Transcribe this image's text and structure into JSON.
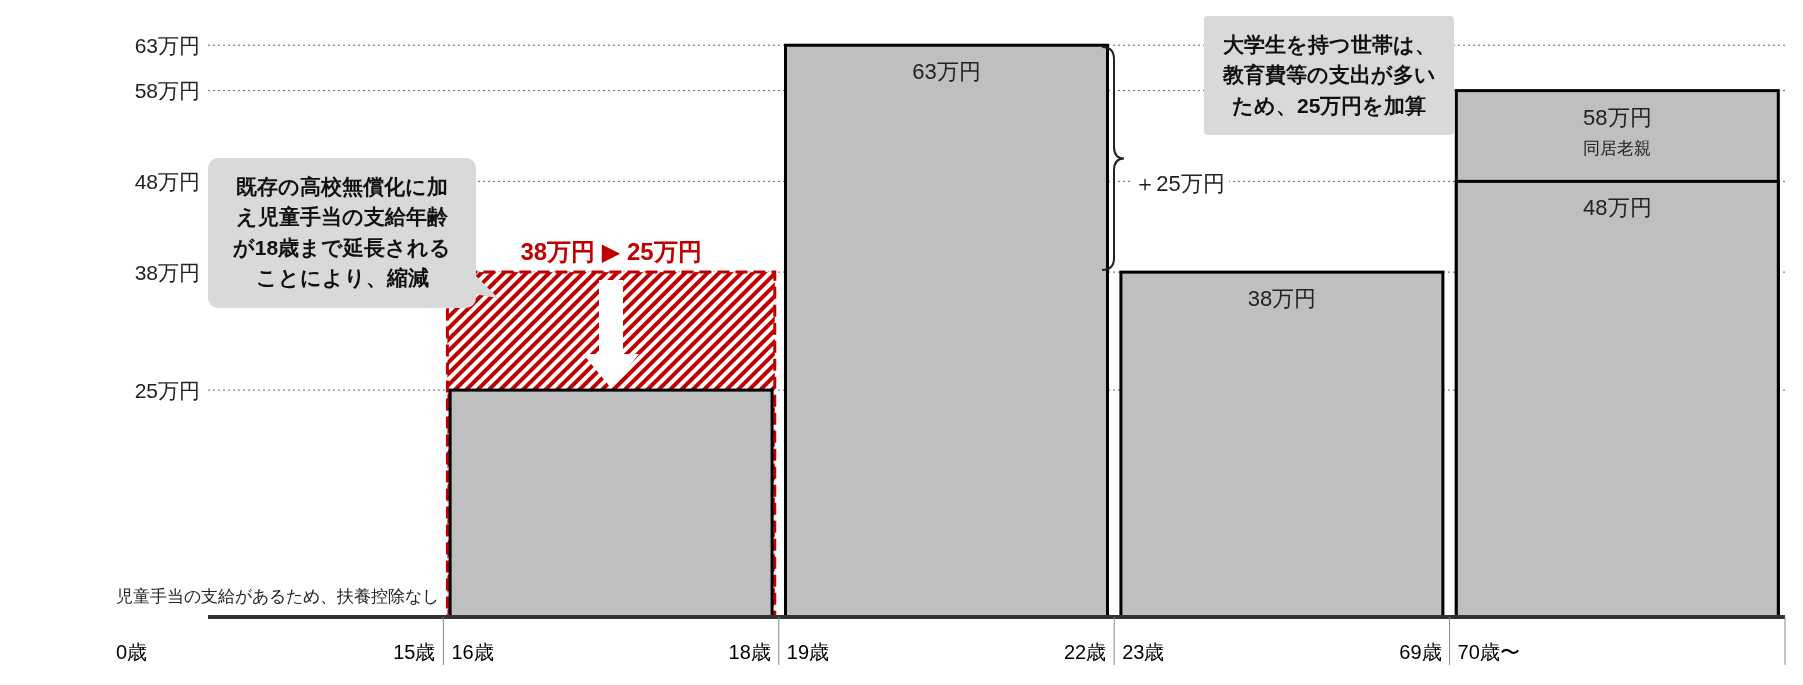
{
  "chart_data": {
    "type": "bar",
    "categories": [
      null,
      null,
      null,
      null,
      null
    ],
    "series": [
      {
        "color": "#c00000",
        "line_style": "dashed",
        "values": [
          null,
          38,
          null,
          null,
          null
        ]
      },
      {
        "color": "#bfbfbf",
        "values": [
          null,
          null,
          null,
          null,
          58
        ],
        "value_labels": [
          null,
          null,
          null,
          null,
          "58万円"
        ]
      },
      {
        "color": "#bfbfbf",
        "values": [
          0,
          25,
          63,
          38,
          48
        ],
        "value_labels": [
          null,
          null,
          "63万円",
          "38万円",
          "48万円"
        ]
      }
    ],
    "ylim": [
      0,
      66
    ],
    "yticks": [
      {
        "value": 25,
        "label": "25万円"
      },
      {
        "value": 38,
        "label": "38万円"
      },
      {
        "value": 48,
        "label": "48万円"
      },
      {
        "value": 58,
        "label": "58万円"
      },
      {
        "value": 63,
        "label": "63万円"
      }
    ],
    "grid": "y",
    "legend": false,
    "annotations": [
      "0歳",
      "15歳",
      "16歳",
      "18歳",
      "19歳",
      "22歳",
      "23歳",
      "69歳",
      "70歳〜",
      "既存の高校無償化に加え児童手当の支給年齢が18歳まで延長されることにより、縮減",
      "大学生を持つ世帯は、教育費等の支出が多いため、25万円を加算",
      "＋25万円",
      "児童手当の支給があるため、扶養控除なし",
      "同居老親",
      "38万円 ▶ 25万円"
    ]
  }
}
